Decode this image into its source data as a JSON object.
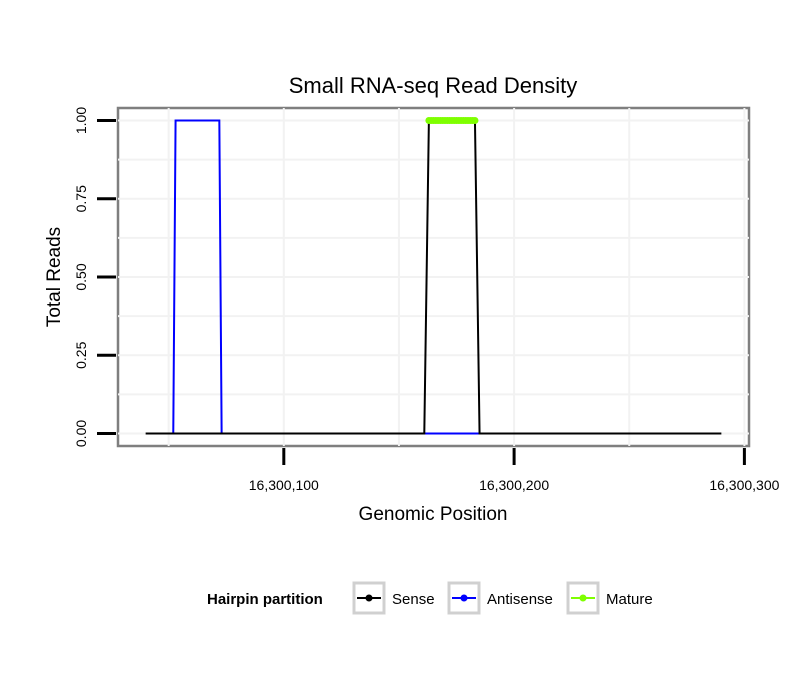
{
  "chart_data": {
    "type": "line",
    "title": "Small RNA-seq Read Density",
    "xlabel": "Genomic Position",
    "ylabel": "Total Reads",
    "xlim": [
      16300028,
      16300302
    ],
    "ylim": [
      -0.04,
      1.04
    ],
    "x_ticks": [
      16300100,
      16300200,
      16300300
    ],
    "x_tick_labels": [
      "16,300,100",
      "16,300,200",
      "16,300,300"
    ],
    "y_ticks": [
      0,
      0.25,
      0.5,
      0.75,
      1
    ],
    "y_tick_labels": [
      "0.00",
      "0.25",
      "0.50",
      "0.75",
      "1.00"
    ],
    "grid": true,
    "legend": {
      "title": "Hairpin partition",
      "position": "bottom"
    },
    "series": [
      {
        "name": "Sense",
        "color": "#000000",
        "x": [
          16300040,
          16300161,
          16300163,
          16300183,
          16300185,
          16300290
        ],
        "y": [
          0,
          0,
          1,
          1,
          0,
          0
        ]
      },
      {
        "name": "Antisense",
        "color": "#0000ff",
        "x": [
          16300052,
          16300053,
          16300072,
          16300073,
          16300161,
          16300185
        ],
        "y": [
          0,
          1,
          1,
          0,
          0,
          0
        ]
      },
      {
        "name": "Mature",
        "color": "#7fff00",
        "x": [
          16300163,
          16300183
        ],
        "y": [
          1,
          1
        ]
      }
    ]
  }
}
